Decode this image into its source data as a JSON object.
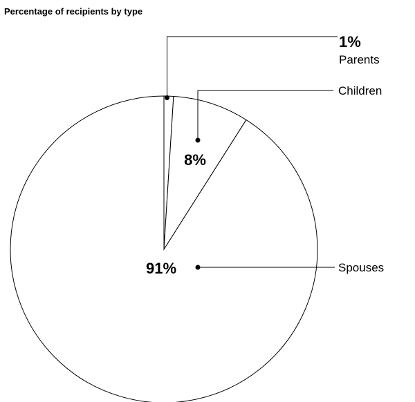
{
  "chart_data": {
    "type": "pie",
    "title": "Percentage of recipients by type",
    "categories": [
      "Parents",
      "Children",
      "Spouses"
    ],
    "values": [
      1,
      8,
      91
    ],
    "value_labels": [
      "1%",
      "8%",
      "91%"
    ],
    "unit": "%",
    "start_angle_deg": 0,
    "direction": "clockwise",
    "legend": "none",
    "colors": {
      "slice_fill": "#ffffff",
      "stroke": "#000000"
    }
  }
}
